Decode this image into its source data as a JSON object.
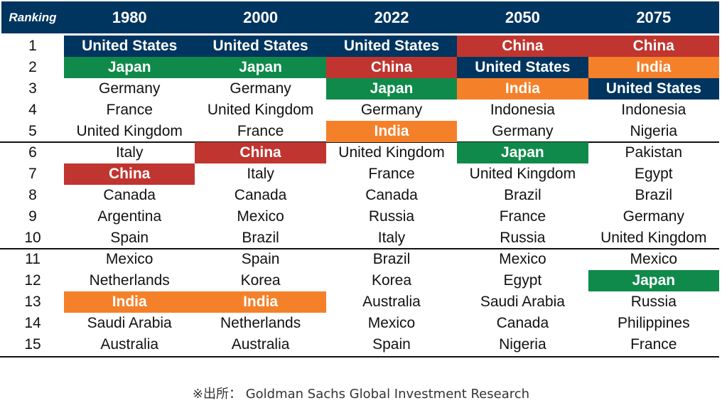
{
  "chart_data": {
    "type": "table",
    "header_label": "Ranking",
    "years": [
      "1980",
      "2000",
      "2022",
      "2050",
      "2075"
    ],
    "ranks": [
      1,
      2,
      3,
      4,
      5,
      6,
      7,
      8,
      9,
      10,
      11,
      12,
      13,
      14,
      15
    ],
    "columns": [
      [
        "United States",
        "Japan",
        "Germany",
        "France",
        "United Kingdom",
        "Italy",
        "China",
        "Canada",
        "Argentina",
        "Spain",
        "Mexico",
        "Netherlands",
        "India",
        "Saudi Arabia",
        "Australia"
      ],
      [
        "United States",
        "Japan",
        "Germany",
        "United Kingdom",
        "France",
        "China",
        "Italy",
        "Canada",
        "Mexico",
        "Brazil",
        "Spain",
        "Korea",
        "India",
        "Netherlands",
        "Australia"
      ],
      [
        "United States",
        "China",
        "Japan",
        "Germany",
        "India",
        "United Kingdom",
        "France",
        "Canada",
        "Russia",
        "Italy",
        "Brazil",
        "Korea",
        "Australia",
        "Mexico",
        "Spain"
      ],
      [
        "China",
        "United States",
        "India",
        "Indonesia",
        "Germany",
        "Japan",
        "United Kingdom",
        "Brazil",
        "France",
        "Russia",
        "Mexico",
        "Egypt",
        "Saudi Arabia",
        "Canada",
        "Nigeria"
      ],
      [
        "China",
        "India",
        "United States",
        "Indonesia",
        "Nigeria",
        "Pakistan",
        "Egypt",
        "Brazil",
        "Germany",
        "United Kingdom",
        "Mexico",
        "Japan",
        "Russia",
        "Philippines",
        "France"
      ]
    ],
    "highlight_colors": {
      "United States": "#003560",
      "Japan": "#0f8a4a",
      "China": "#c0352f",
      "India": "#f5802a"
    }
  },
  "source": "※出所： Goldman Sachs Global Investment Research"
}
